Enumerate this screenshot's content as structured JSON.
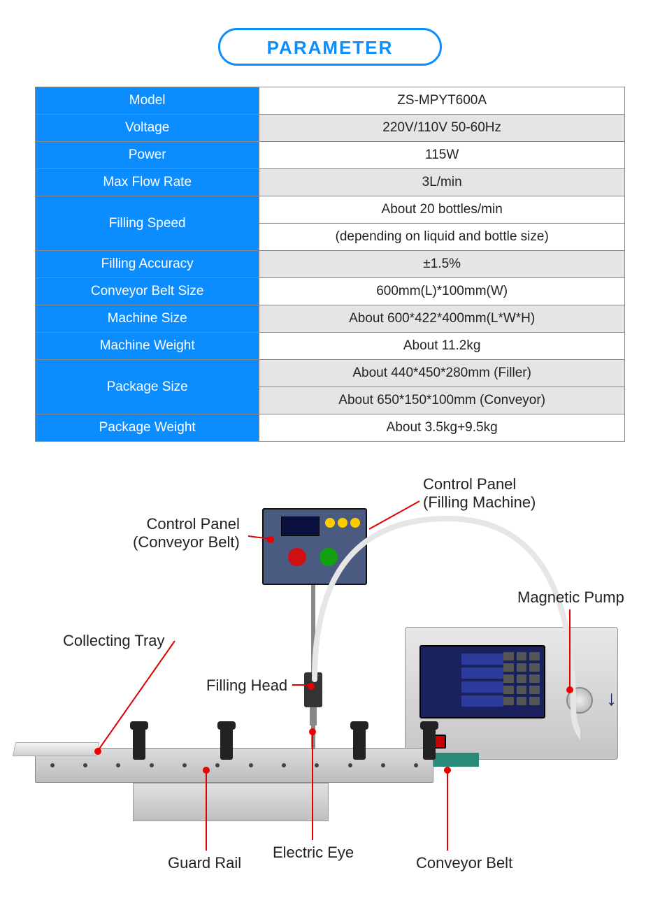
{
  "title": "PARAMETER",
  "colors": {
    "blue": "#0b8cff",
    "header_bg": "#0b8cff",
    "header_text": "#ffffff",
    "cell_text": "#222222",
    "row_odd_bg": "#ffffff",
    "row_even_bg": "#e5e5e5",
    "border": "#888888",
    "lead_line": "#e00000"
  },
  "table": {
    "rows": [
      {
        "label": "Model",
        "value": "ZS-MPYT600A",
        "odd": true
      },
      {
        "label": "Voltage",
        "value": "220V/110V 50-60Hz",
        "odd": false
      },
      {
        "label": "Power",
        "value": "115W",
        "odd": true
      },
      {
        "label": "Max Flow Rate",
        "value": "3L/min",
        "odd": false
      },
      {
        "label": "Filling Speed",
        "value": "About 20 bottles/min",
        "value2": "(depending on liquid and bottle size)",
        "odd": true,
        "rowspan": 2
      },
      {
        "label": "Filling Accuracy",
        "value": "±1.5%",
        "odd": false
      },
      {
        "label": "Conveyor Belt Size",
        "value": "600mm(L)*100mm(W)",
        "odd": true
      },
      {
        "label": "Machine Size",
        "value": "About 600*422*400mm(L*W*H)",
        "odd": false
      },
      {
        "label": "Machine Weight",
        "value": "About 11.2kg",
        "odd": true
      },
      {
        "label": "Package Size",
        "value": "About 440*450*280mm (Filler)",
        "value2": "About 650*150*100mm (Conveyor)",
        "odd": false,
        "rowspan": 2
      },
      {
        "label": "Package Weight",
        "value": "About 3.5kg+9.5kg",
        "odd": true
      }
    ]
  },
  "diagram_labels": {
    "control_panel_conveyor_l1": "Control Panel",
    "control_panel_conveyor_l2": "(Conveyor Belt)",
    "control_panel_filling_l1": "Control Panel",
    "control_panel_filling_l2": "(Filling Machine)",
    "magnetic_pump": "Magnetic Pump",
    "collecting_tray": "Collecting Tray",
    "filling_head": "Filling Head",
    "electric_eye": "Electric Eye",
    "guard_rail": "Guard Rail",
    "conveyor_belt": "Conveyor Belt"
  }
}
